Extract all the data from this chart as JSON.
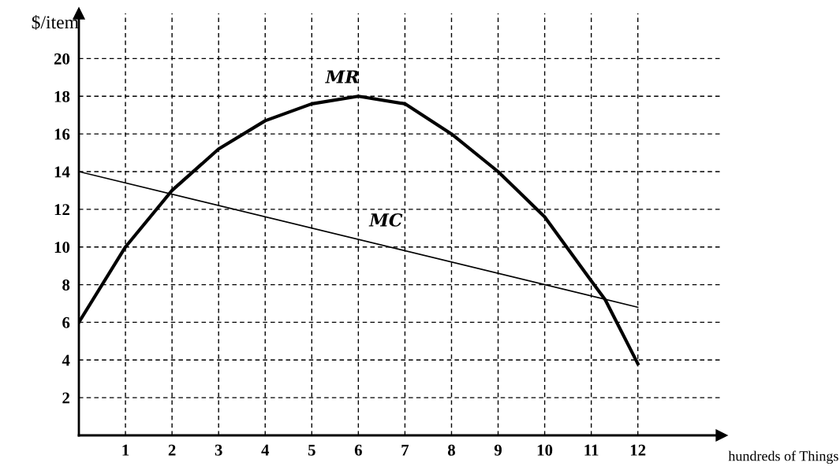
{
  "chart_data": {
    "type": "line",
    "xlabel": "hundreds of Things",
    "ylabel": "$/item",
    "x": [
      0,
      1,
      2,
      3,
      4,
      5,
      6,
      7,
      8,
      9,
      10,
      11,
      11.3,
      12
    ],
    "series": [
      {
        "name": "MR",
        "color": "#000000",
        "values": [
          6,
          10,
          13,
          15.2,
          16.7,
          17.6,
          18,
          17.6,
          16,
          14,
          11.6,
          8.2,
          7.2,
          3.8
        ]
      },
      {
        "name": "MC",
        "color": "#000000",
        "x": [
          0,
          12
        ],
        "values": [
          14,
          6.8
        ]
      }
    ],
    "xlim": [
      0,
      13.8
    ],
    "ylim": [
      0,
      22.4
    ],
    "xticks": [
      1,
      2,
      3,
      4,
      5,
      6,
      7,
      8,
      9,
      10,
      11,
      12
    ],
    "yticks": [
      2,
      4,
      6,
      8,
      10,
      12,
      14,
      16,
      18,
      20
    ],
    "grid": true,
    "line_style": "solid",
    "legend": false
  }
}
